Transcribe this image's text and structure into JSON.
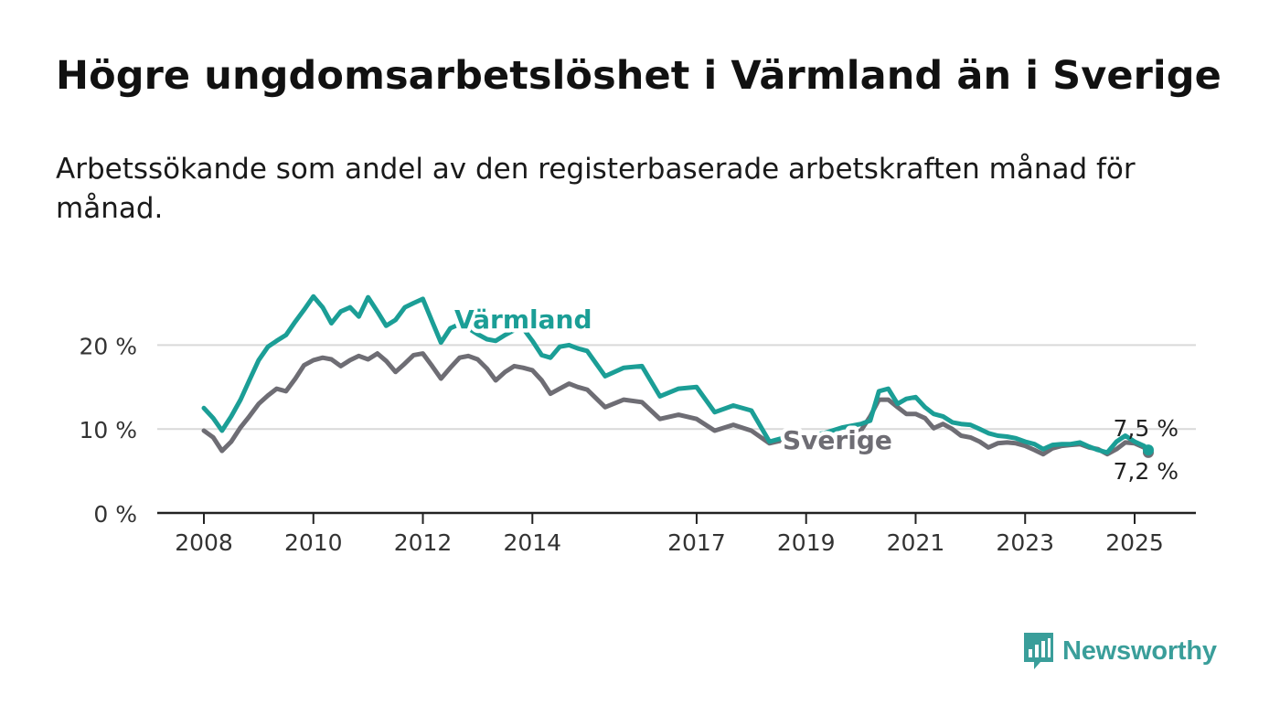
{
  "title": "Högre ungdomsarbetslöshet i Värmland än i Sverige",
  "subtitle": "Arbetssökande som andel av den registerbaserade arbetskraften månad för månad.",
  "logo": {
    "name": "Newsworthy",
    "icon": "newsworthy-chart-bubble-icon"
  },
  "chart_data": {
    "type": "line",
    "x_unit": "year",
    "ylim": [
      0,
      27
    ],
    "y_ticks": [
      {
        "value": 0,
        "label": "0 %"
      },
      {
        "value": 10,
        "label": "10 %"
      },
      {
        "value": 20,
        "label": "20 %"
      }
    ],
    "x_ticks": [
      {
        "value": 2008,
        "label": "2008"
      },
      {
        "value": 2010,
        "label": "2010"
      },
      {
        "value": 2012,
        "label": "2012"
      },
      {
        "value": 2014,
        "label": "2014"
      },
      {
        "value": 2017,
        "label": "2017"
      },
      {
        "value": 2019,
        "label": "2019"
      },
      {
        "value": 2021,
        "label": "2021"
      },
      {
        "value": 2023,
        "label": "2023"
      },
      {
        "value": 2025,
        "label": "2025"
      }
    ],
    "xlim": [
      2007.15,
      2026.1
    ],
    "grid": true,
    "series": [
      {
        "name": "Sverige",
        "color": "#6e6d74",
        "end_label": "7,2 %",
        "x": [
          2008.0,
          2008.17,
          2008.33,
          2008.5,
          2008.67,
          2008.83,
          2009.0,
          2009.17,
          2009.33,
          2009.5,
          2009.67,
          2009.83,
          2010.0,
          2010.17,
          2010.33,
          2010.5,
          2010.67,
          2010.83,
          2011.0,
          2011.17,
          2011.33,
          2011.5,
          2011.67,
          2011.83,
          2012.0,
          2012.17,
          2012.33,
          2012.5,
          2012.67,
          2012.83,
          2013.0,
          2013.17,
          2013.33,
          2013.5,
          2013.67,
          2013.83,
          2014.0,
          2014.17,
          2014.33,
          2014.5,
          2014.67,
          2014.83,
          2015.0,
          2015.33,
          2015.67,
          2016.0,
          2016.33,
          2016.67,
          2017.0,
          2017.33,
          2017.67,
          2018.0,
          2018.33,
          2018.67,
          2019.0,
          2019.33,
          2019.67,
          2020.0,
          2020.17,
          2020.33,
          2020.5,
          2020.67,
          2020.83,
          2021.0,
          2021.17,
          2021.33,
          2021.5,
          2021.67,
          2021.83,
          2022.0,
          2022.17,
          2022.33,
          2022.5,
          2022.67,
          2022.83,
          2023.0,
          2023.17,
          2023.33,
          2023.5,
          2023.67,
          2023.83,
          2024.0,
          2024.17,
          2024.33,
          2024.5,
          2024.67,
          2024.83,
          2025.0,
          2025.17,
          2025.25
        ],
        "y": [
          9.8,
          9.0,
          7.4,
          8.5,
          10.2,
          11.5,
          13.0,
          14.0,
          14.8,
          14.5,
          16.0,
          17.6,
          18.2,
          18.5,
          18.3,
          17.5,
          18.2,
          18.7,
          18.3,
          19.0,
          18.1,
          16.8,
          17.8,
          18.8,
          19.0,
          17.5,
          16.0,
          17.3,
          18.5,
          18.7,
          18.3,
          17.2,
          15.8,
          16.8,
          17.5,
          17.3,
          17.0,
          15.8,
          14.2,
          14.8,
          15.4,
          15.0,
          14.7,
          12.6,
          13.5,
          13.2,
          11.2,
          11.7,
          11.2,
          9.8,
          10.5,
          9.8,
          8.3,
          8.8,
          9.0,
          8.9,
          9.3,
          9.8,
          11.5,
          13.5,
          13.5,
          12.6,
          11.8,
          11.8,
          11.3,
          10.1,
          10.6,
          10.0,
          9.2,
          9.0,
          8.5,
          7.8,
          8.3,
          8.4,
          8.3,
          8.0,
          7.5,
          7.0,
          7.7,
          8.0,
          8.1,
          8.2,
          7.8,
          7.6,
          7.0,
          7.6,
          8.4,
          8.3,
          7.8,
          7.2
        ]
      },
      {
        "name": "Värmland",
        "color": "#1b9e96",
        "end_label": "7,5 %",
        "x": [
          2008.0,
          2008.17,
          2008.33,
          2008.5,
          2008.67,
          2008.83,
          2009.0,
          2009.17,
          2009.33,
          2009.5,
          2009.67,
          2009.83,
          2010.0,
          2010.17,
          2010.33,
          2010.5,
          2010.67,
          2010.83,
          2011.0,
          2011.17,
          2011.33,
          2011.5,
          2011.67,
          2011.83,
          2012.0,
          2012.17,
          2012.33,
          2012.5,
          2012.67,
          2012.83,
          2013.0,
          2013.17,
          2013.33,
          2013.5,
          2013.67,
          2013.83,
          2014.0,
          2014.17,
          2014.33,
          2014.5,
          2014.67,
          2014.83,
          2015.0,
          2015.33,
          2015.67,
          2016.0,
          2016.33,
          2016.67,
          2017.0,
          2017.33,
          2017.67,
          2018.0,
          2018.33,
          2018.67,
          2019.0,
          2019.33,
          2019.67,
          2020.0,
          2020.17,
          2020.33,
          2020.5,
          2020.67,
          2020.83,
          2021.0,
          2021.17,
          2021.33,
          2021.5,
          2021.67,
          2021.83,
          2022.0,
          2022.17,
          2022.33,
          2022.5,
          2022.67,
          2022.83,
          2023.0,
          2023.17,
          2023.33,
          2023.5,
          2023.67,
          2023.83,
          2024.0,
          2024.17,
          2024.33,
          2024.5,
          2024.67,
          2024.83,
          2025.0,
          2025.17,
          2025.25
        ],
        "y": [
          12.5,
          11.3,
          9.8,
          11.5,
          13.5,
          15.8,
          18.2,
          19.8,
          20.5,
          21.2,
          22.8,
          24.2,
          25.8,
          24.5,
          22.6,
          24.0,
          24.5,
          23.4,
          25.7,
          24.0,
          22.3,
          23.0,
          24.5,
          25.0,
          25.5,
          22.8,
          20.3,
          22.0,
          22.5,
          22.0,
          21.3,
          20.7,
          20.5,
          21.2,
          21.8,
          22.0,
          20.5,
          18.8,
          18.5,
          19.8,
          20.0,
          19.6,
          19.3,
          16.3,
          17.3,
          17.5,
          13.9,
          14.8,
          15.0,
          12.0,
          12.8,
          12.2,
          8.5,
          9.1,
          9.2,
          9.5,
          10.2,
          10.6,
          11.0,
          14.5,
          14.8,
          13.0,
          13.6,
          13.8,
          12.6,
          11.8,
          11.5,
          10.8,
          10.6,
          10.5,
          10.0,
          9.5,
          9.2,
          9.1,
          8.9,
          8.5,
          8.2,
          7.6,
          8.1,
          8.2,
          8.2,
          8.4,
          7.9,
          7.5,
          7.2,
          8.5,
          9.2,
          8.5,
          8.0,
          7.5
        ]
      }
    ]
  }
}
